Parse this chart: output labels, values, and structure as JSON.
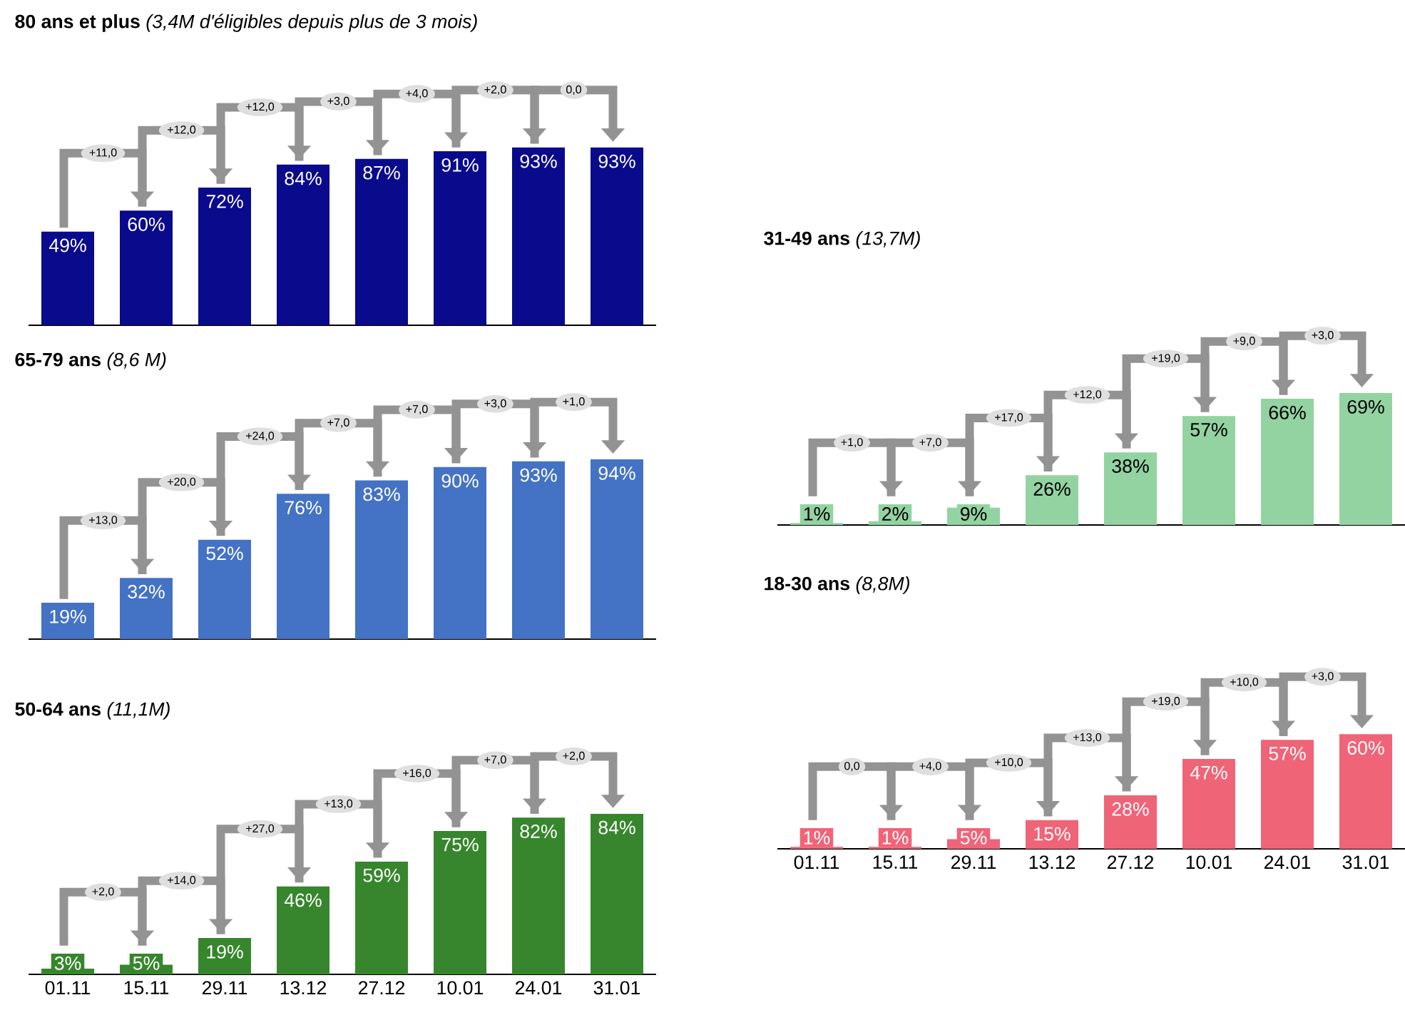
{
  "chart_data": [
    {
      "type": "bar",
      "title": "**80 ans et plus** *(3,4M d'éligibles depuis plus de 3 mois)*",
      "categories": [
        "01.11",
        "15.11",
        "29.11",
        "13.12",
        "27.12",
        "10.01",
        "24.01",
        "31.01"
      ],
      "values": [
        49,
        60,
        72,
        84,
        87,
        91,
        93,
        93
      ],
      "value_labels": [
        "49%",
        "60%",
        "72%",
        "84%",
        "87%",
        "91%",
        "93%",
        "93%"
      ],
      "color": "#0a0a8c",
      "annotations": [
        "+11,0",
        "+12,0",
        "+12,0",
        "+3,0",
        "+4,0",
        "+2,0",
        "0,0"
      ],
      "tick_labels": false
    },
    {
      "type": "bar",
      "title": "**65-79 ans** *(8,6 M)*",
      "categories": [
        "01.11",
        "15.11",
        "29.11",
        "13.12",
        "27.12",
        "10.01",
        "24.01",
        "31.01"
      ],
      "values": [
        19,
        32,
        52,
        76,
        83,
        90,
        93,
        94
      ],
      "value_labels": [
        "19%",
        "32%",
        "52%",
        "76%",
        "83%",
        "90%",
        "93%",
        "94%"
      ],
      "color": "#4472c4",
      "annotations": [
        "+13,0",
        "+20,0",
        "+24,0",
        "+7,0",
        "+7,0",
        "+3,0",
        "+1,0"
      ],
      "tick_labels": false
    },
    {
      "type": "bar",
      "title": "**50-64 ans** *(11,1M)*",
      "categories": [
        "01.11",
        "15.11",
        "29.11",
        "13.12",
        "27.12",
        "10.01",
        "24.01",
        "31.01"
      ],
      "values": [
        3,
        5,
        19,
        46,
        59,
        75,
        82,
        84
      ],
      "value_labels": [
        "3%",
        "5%",
        "19%",
        "46%",
        "59%",
        "75%",
        "82%",
        "84%"
      ],
      "color": "#37862d",
      "annotations": [
        "+2,0",
        "+14,0",
        "+27,0",
        "+13,0",
        "+16,0",
        "+7,0",
        "+2,0"
      ],
      "tick_labels": "x"
    },
    {
      "type": "bar",
      "title": "**31-49 ans** *(13,7M)*",
      "categories": [
        "01.11",
        "15.11",
        "29.11",
        "13.12",
        "27.12",
        "10.01",
        "24.01",
        "31.01"
      ],
      "values": [
        1,
        2,
        9,
        26,
        38,
        57,
        66,
        69
      ],
      "value_labels": [
        "1%",
        "2%",
        "9%",
        "26%",
        "38%",
        "57%",
        "66%",
        "69%"
      ],
      "color": "#93d3a2",
      "annotations": [
        "+1,0",
        "+7,0",
        "+17,0",
        "+12,0",
        "+19,0",
        "+9,0",
        "+3,0"
      ],
      "tick_labels": false
    },
    {
      "type": "bar",
      "title": "**18-30 ans** *(8,8M)*",
      "categories": [
        "01.11",
        "15.11",
        "29.11",
        "13.12",
        "27.12",
        "10.01",
        "24.01",
        "31.01"
      ],
      "values": [
        1,
        1,
        5,
        15,
        28,
        47,
        57,
        60
      ],
      "value_labels": [
        "1%",
        "1%",
        "5%",
        "15%",
        "28%",
        "47%",
        "57%",
        "60%"
      ],
      "color": "#f06478",
      "annotations": [
        "0,0",
        "+4,0",
        "+10,0",
        "+13,0",
        "+19,0",
        "+10,0",
        "+3,0"
      ],
      "tick_labels": "x"
    }
  ]
}
